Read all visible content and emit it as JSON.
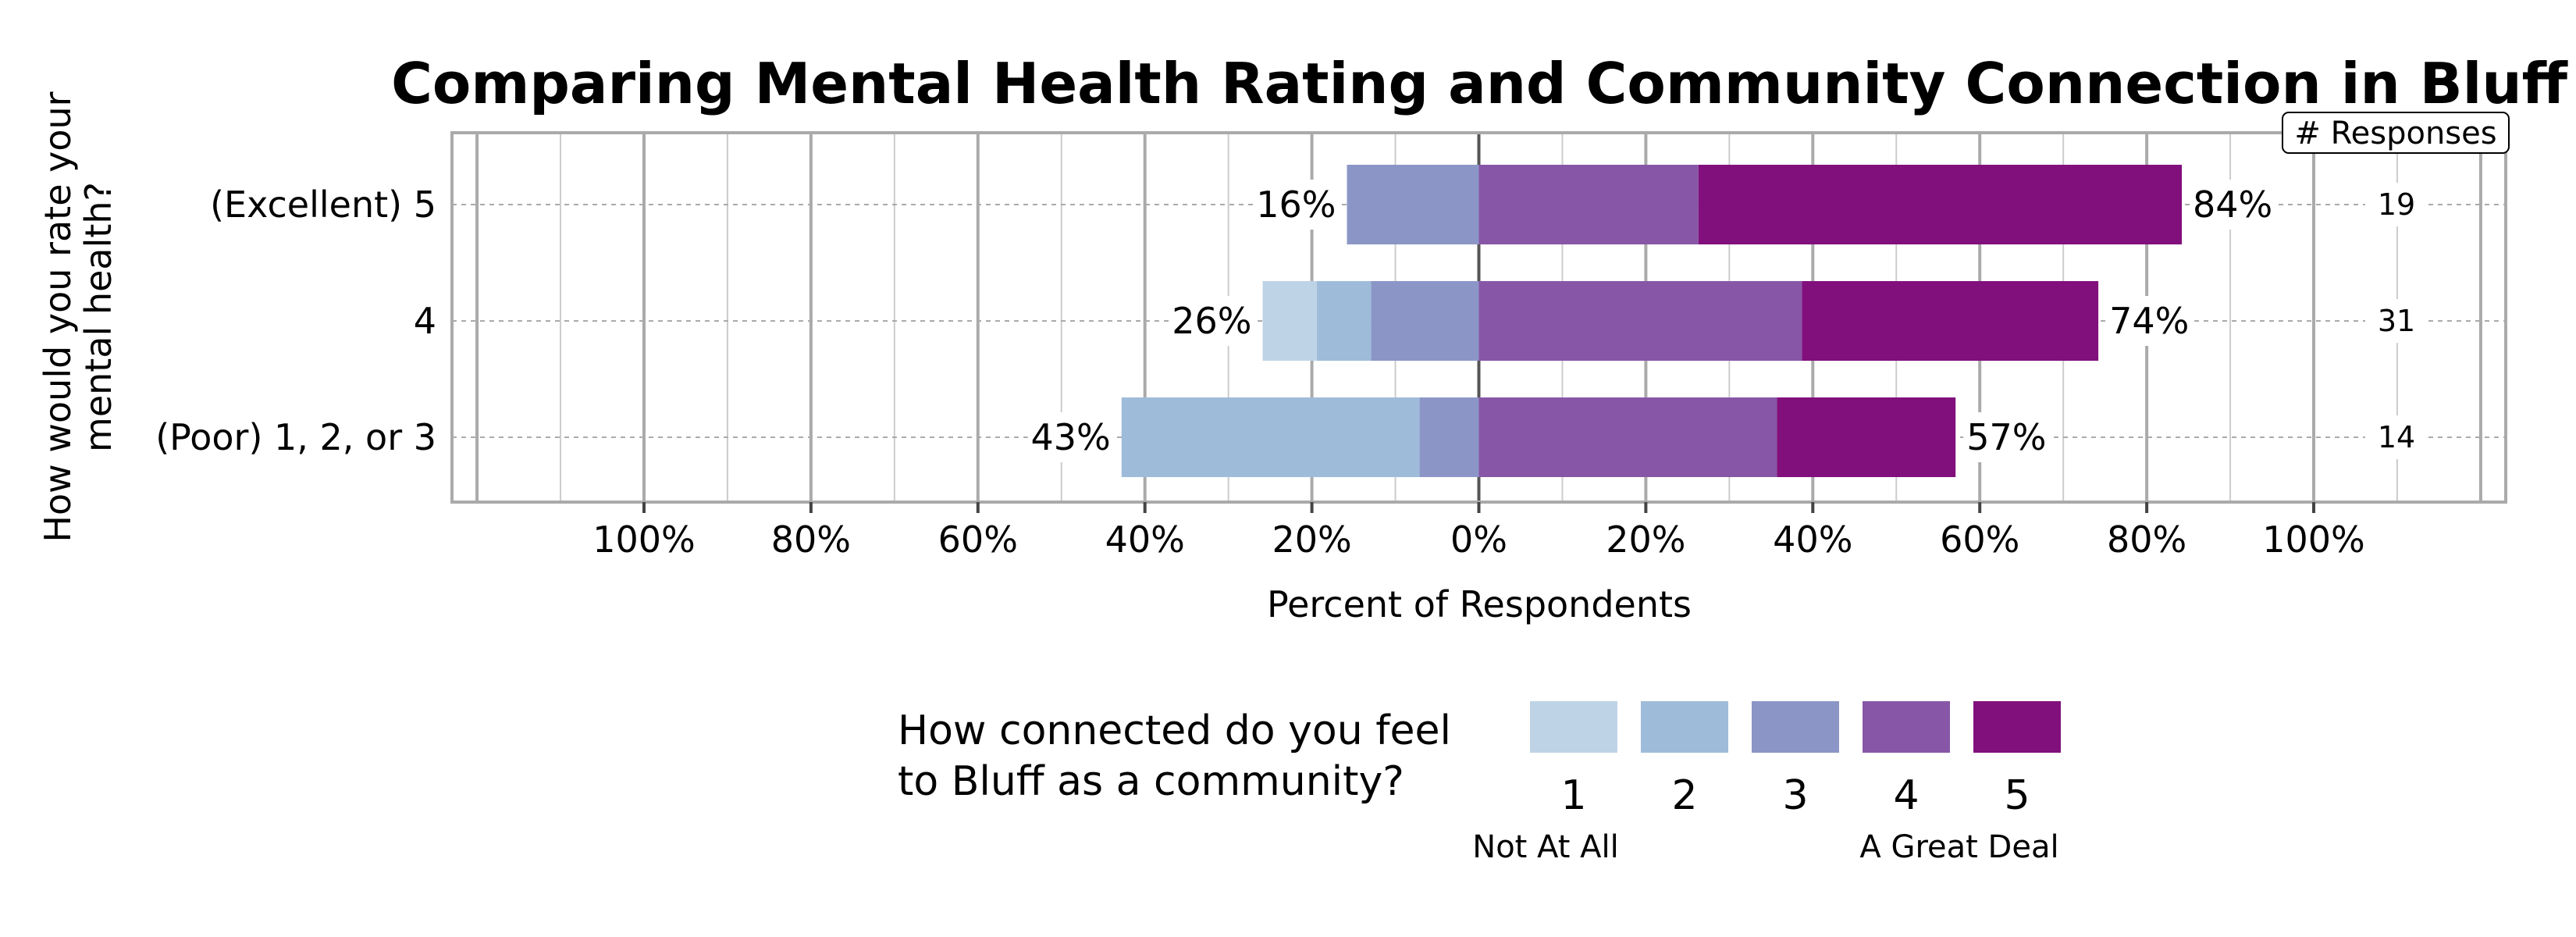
{
  "chart_data": {
    "type": "bar",
    "orientation": "horizontal diverging stacked",
    "title": "Comparing Mental Health Rating and Community Connection in Bluff",
    "xlabel": "Percent of Respondents",
    "ylabel": "How would you rate your mental health?",
    "xlim": [
      -123,
      123
    ],
    "x_ticks": [
      "100%",
      "80%",
      "60%",
      "40%",
      "20%",
      "0%",
      "20%",
      "40%",
      "60%",
      "80%",
      "100%"
    ],
    "x_tick_values": [
      -100,
      -80,
      -60,
      -40,
      -20,
      0,
      20,
      40,
      60,
      80,
      100
    ],
    "grid": true,
    "categories": [
      "(Excellent) 5",
      "4",
      "(Poor) 1, 2, or 3"
    ],
    "responses_header": "# Responses",
    "responses": [
      "19",
      "31",
      "14"
    ],
    "negative_labels": [
      "16%",
      "26%",
      "43%"
    ],
    "positive_labels": [
      "84%",
      "74%",
      "57%"
    ],
    "series": [
      {
        "name": "1",
        "color": "#bfd3e6",
        "values": [
          0,
          6.5,
          0
        ]
      },
      {
        "name": "2",
        "color": "#9ebcda",
        "values": [
          0,
          6.5,
          35.7
        ]
      },
      {
        "name": "3",
        "color": "#8c96c6",
        "values": [
          15.8,
          12.9,
          7.1
        ]
      },
      {
        "name": "4",
        "color": "#8856a7",
        "values": [
          26.3,
          38.7,
          35.7
        ]
      },
      {
        "name": "5",
        "color": "#810f7c",
        "values": [
          57.9,
          35.5,
          21.4
        ]
      }
    ],
    "legend": {
      "title_line1": "How connected do you feel",
      "title_line2": "to Bluff as a community?",
      "low_label": "Not At All",
      "high_label": "A Great Deal",
      "placement": "bottom"
    }
  }
}
